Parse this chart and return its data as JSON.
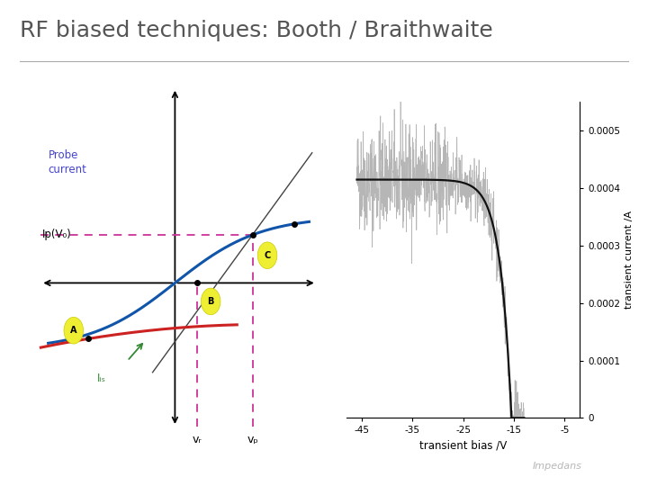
{
  "title": "RF biased techniques: Booth / Braithwaite",
  "title_color": "#555555",
  "title_fontsize": 18,
  "bg_color": "#ffffff",
  "left_panel": {
    "probe_current_label": "Probe\ncurrent",
    "probe_current_color": "#4444cc",
    "ip_label": "Ip(V₀)",
    "tangent_color": "#444444",
    "blue_curve_color": "#1155aa",
    "red_curve_color": "#cc2222",
    "dashed_color": "#cc3399",
    "label_bg": "#eeee44",
    "vr_label": "vᵣ",
    "vp_label": "vₚ",
    "lis_label": "Iᵢₛ",
    "lis_color": "#338833",
    "arrow_color": "#338833"
  },
  "right_panel": {
    "xlabel": "transient bias /V",
    "ylabel": "transient current /A",
    "xlim": [
      -48,
      -2
    ],
    "ylim": [
      0,
      0.00055
    ],
    "xticks": [
      -45,
      -35,
      -25,
      -15,
      -5
    ],
    "yticks": [
      0,
      0.0001,
      0.0002,
      0.0003,
      0.0004,
      0.0005
    ],
    "ytick_labels": [
      "0",
      "0.0001",
      "0.0002",
      "0.0003",
      "0.0004",
      "0.0005"
    ],
    "noise_color": "#aaaaaa",
    "fit_color": "#111111"
  }
}
